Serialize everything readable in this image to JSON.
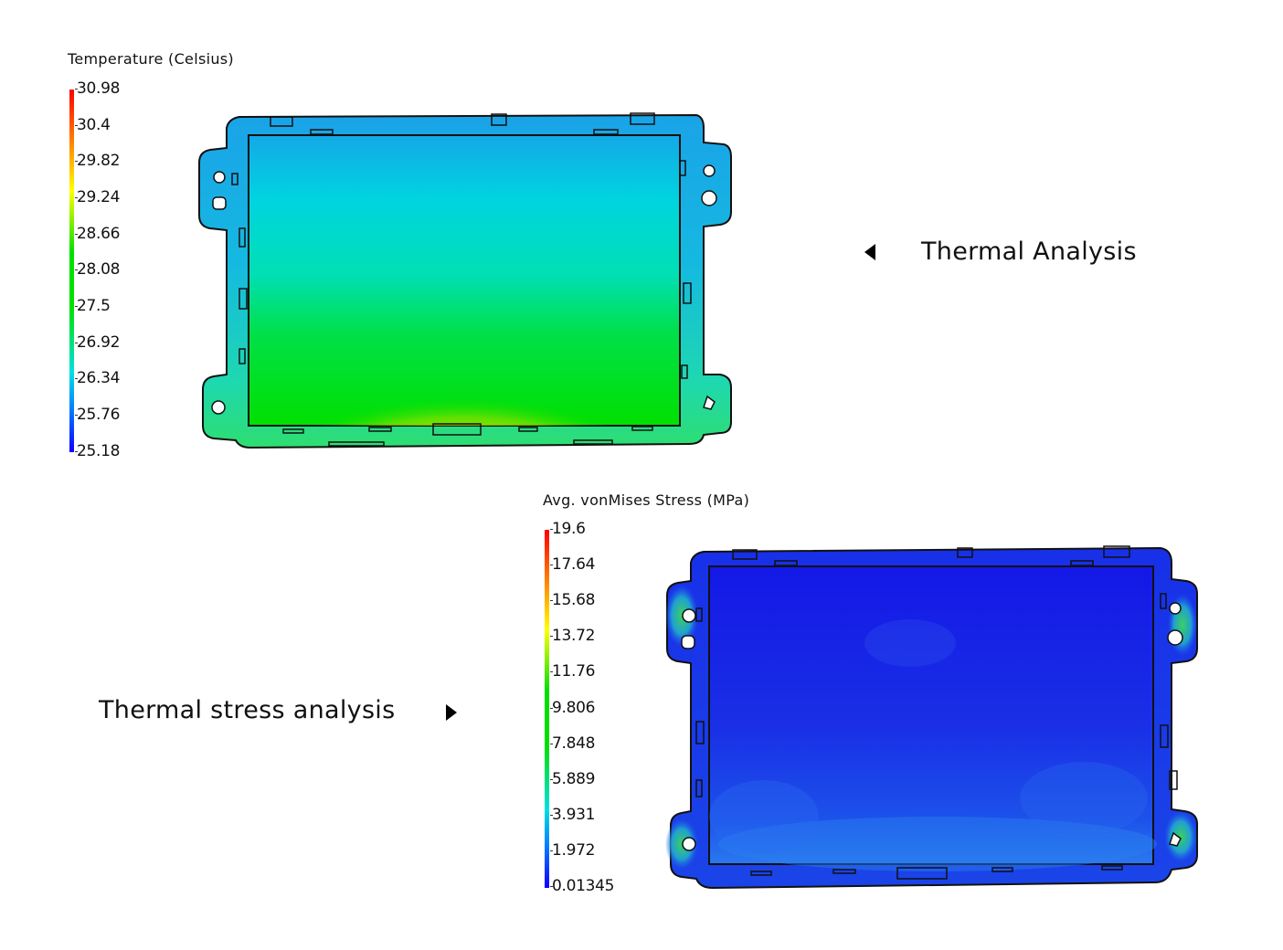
{
  "thermal": {
    "legend_title": "Temperature (Celsius)",
    "ticks": [
      "30.98",
      "30.4",
      "29.82",
      "29.24",
      "28.66",
      "28.08",
      "27.5",
      "26.92",
      "26.34",
      "25.76",
      "25.18"
    ],
    "caption": "Thermal Analysis",
    "colormap": [
      "#ff0000",
      "#ff8000",
      "#ffff00",
      "#00e000",
      "#00e0e0",
      "#0060ff",
      "#1000ff"
    ]
  },
  "stress": {
    "legend_title": "Avg. vonMises Stress (MPa)",
    "ticks": [
      "19.6",
      "17.64",
      "15.68",
      "13.72",
      "11.76",
      "9.806",
      "7.848",
      "5.889",
      "3.931",
      "1.972",
      "0.01345"
    ],
    "caption": "Thermal stress analysis",
    "colormap": [
      "#ff0000",
      "#ff8000",
      "#ffff00",
      "#00e000",
      "#00e0e0",
      "#0060ff",
      "#1000ff"
    ]
  },
  "icons": {
    "thermal_arrow": "triangle-left-icon",
    "stress_arrow": "triangle-right-icon"
  }
}
